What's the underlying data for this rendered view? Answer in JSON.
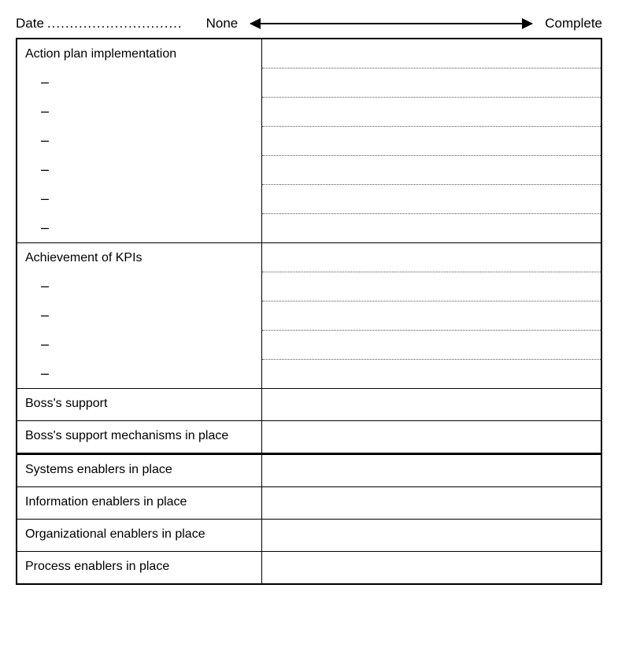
{
  "header": {
    "date_label": "Date",
    "date_dots": "..............................",
    "scale_left": "None",
    "scale_right": "Complete"
  },
  "section1": {
    "title": "Action plan implementation",
    "bullets": [
      "–",
      "–",
      "–",
      "–",
      "–",
      "–"
    ]
  },
  "section2": {
    "title": "Achievement of KPIs",
    "bullets": [
      "–",
      "–",
      "–",
      "–"
    ]
  },
  "simple_rows": [
    "Boss's support",
    "Boss's support mechanisms in place",
    "Systems enablers in place",
    "Information enablers in place",
    "Organizational enablers in place",
    "Process enablers in place"
  ],
  "colors": {
    "border": "#000000",
    "dotted": "#555555",
    "background": "#ffffff",
    "text": "#000000"
  }
}
